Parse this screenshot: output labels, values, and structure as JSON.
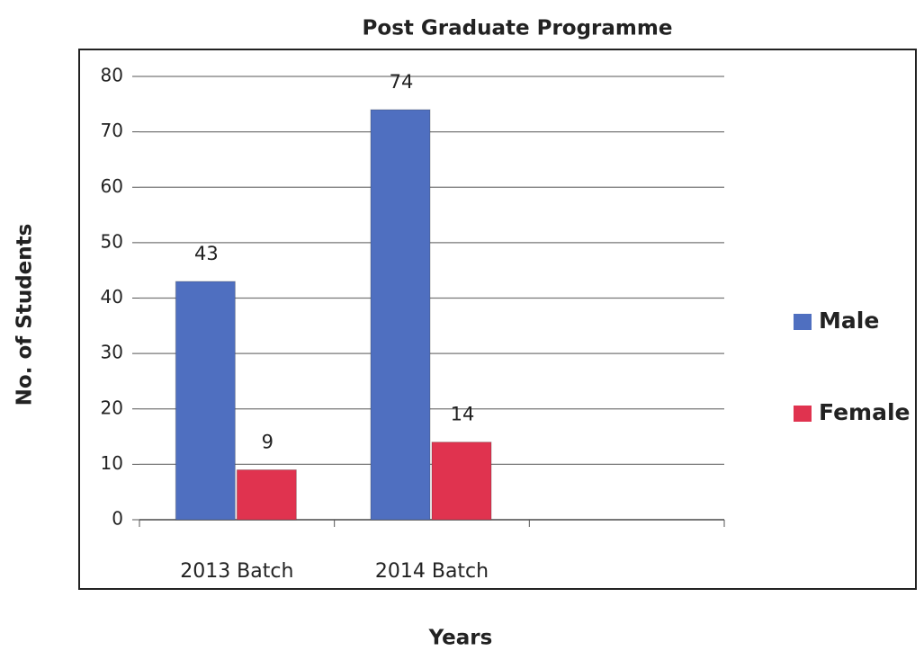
{
  "chart_data": {
    "type": "bar",
    "title": "Post Graduate Programme",
    "x_label": "Years",
    "y_label": "No. of Students",
    "categories": [
      "2013 Batch",
      "2014 Batch",
      null
    ],
    "series": [
      {
        "name": "Male",
        "color": "#4f6fc0",
        "values": [
          43,
          74,
          null
        ]
      },
      {
        "name": "Female",
        "color": "#e0334f",
        "values": [
          9,
          14,
          null
        ]
      }
    ],
    "ylim": [
      0,
      80
    ],
    "yticks": [
      0,
      10,
      20,
      30,
      40,
      50,
      60,
      70,
      80
    ],
    "grid": true,
    "legend": "right"
  }
}
